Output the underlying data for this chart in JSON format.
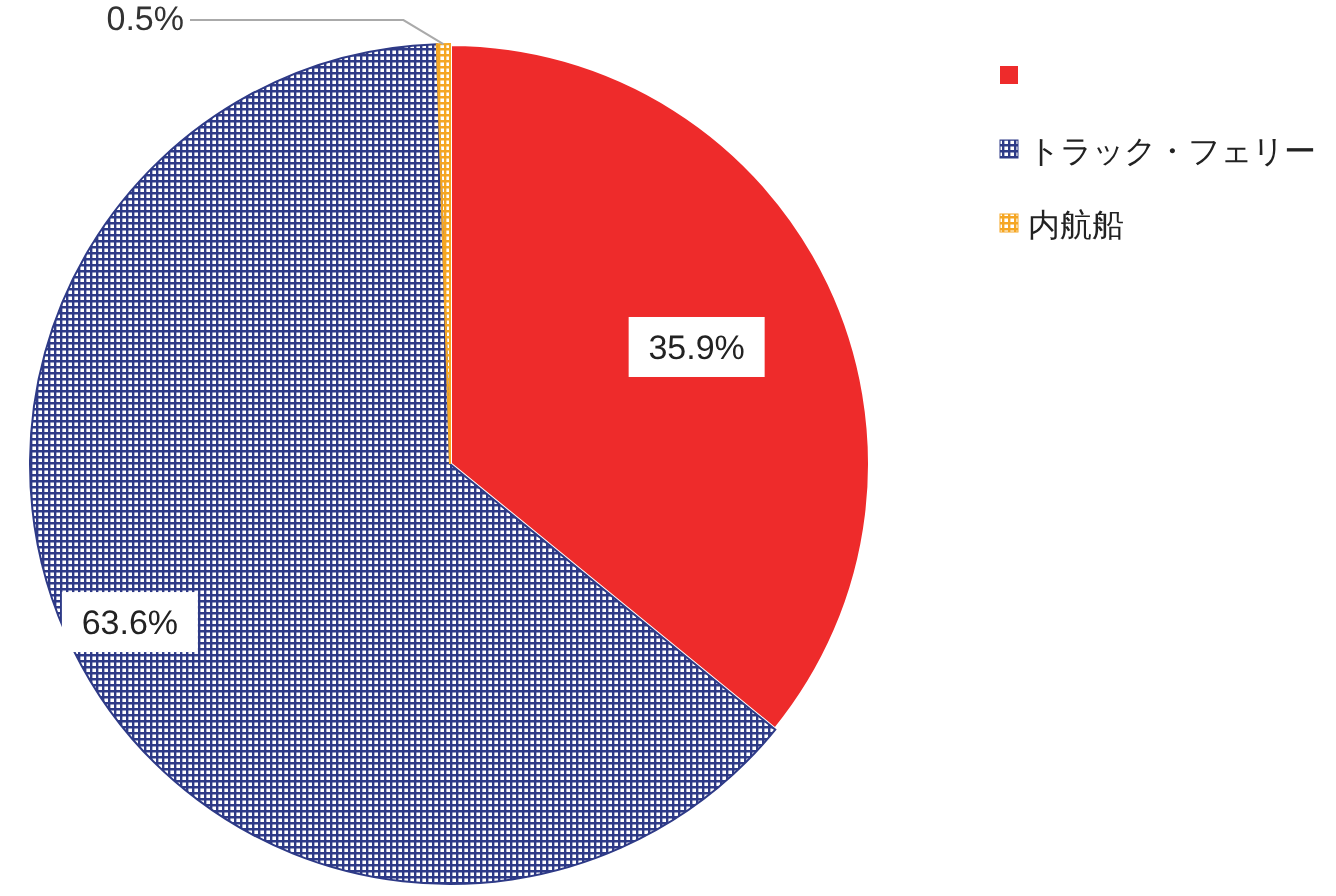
{
  "chart_data": {
    "type": "pie",
    "categories": [
      null,
      "トラック・フェリー",
      "内航船"
    ],
    "values": [
      35.9,
      63.6,
      0.5
    ],
    "colors": [
      "#ee2b2b",
      "#2e3a87",
      "#f5a623"
    ],
    "value_labels": [
      "35.9%",
      "63.6%",
      "0.5%"
    ],
    "legend": "top right"
  }
}
